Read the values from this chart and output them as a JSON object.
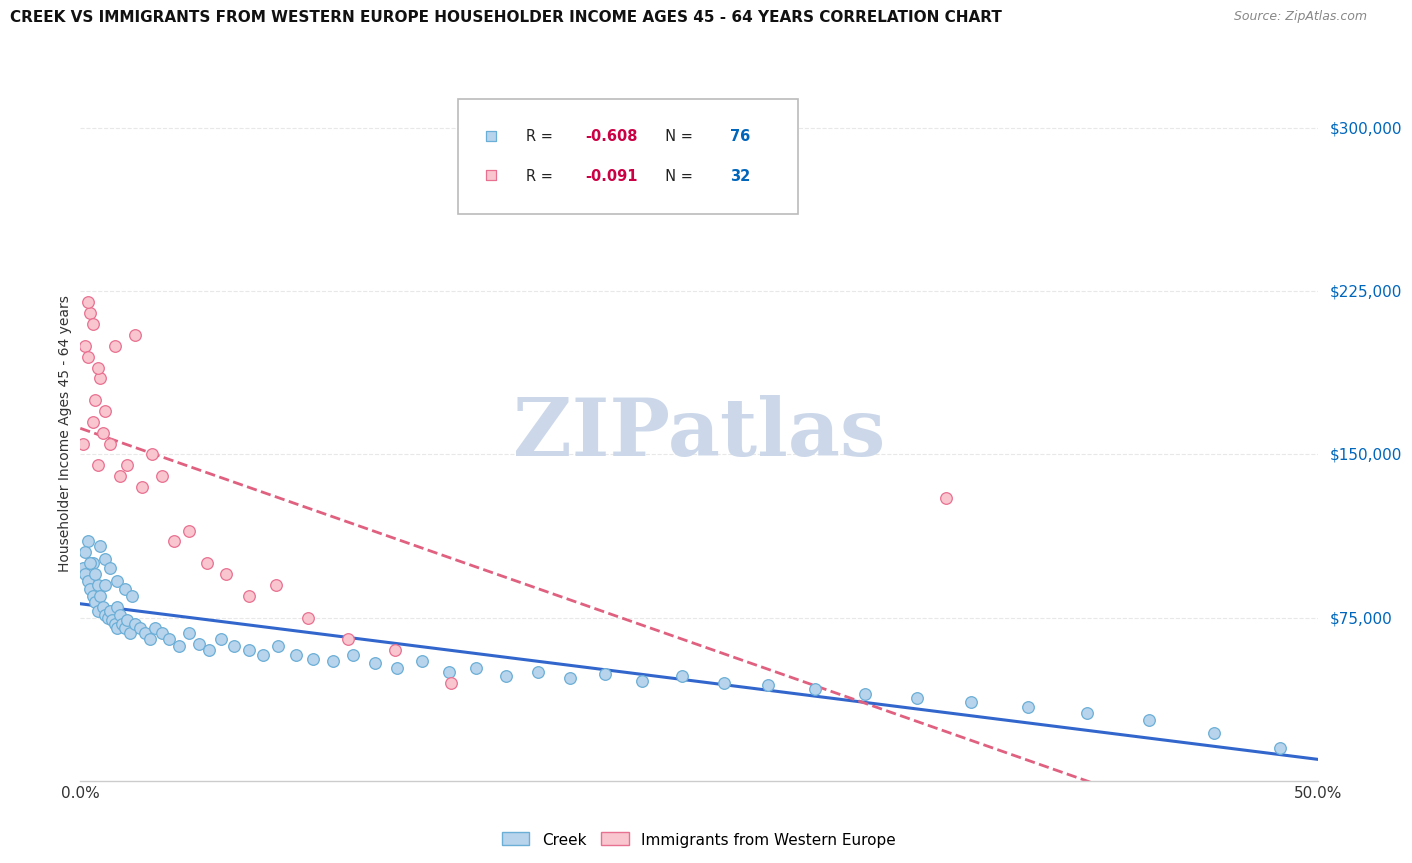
{
  "title": "CREEK VS IMMIGRANTS FROM WESTERN EUROPE HOUSEHOLDER INCOME AGES 45 - 64 YEARS CORRELATION CHART",
  "source": "Source: ZipAtlas.com",
  "ylabel": "Householder Income Ages 45 - 64 years",
  "ytick_labels": [
    "$75,000",
    "$150,000",
    "$225,000",
    "$300,000"
  ],
  "ytick_values": [
    75000,
    150000,
    225000,
    300000
  ],
  "ylim": [
    0,
    320000
  ],
  "xlim": [
    0.0,
    0.5
  ],
  "creek_R": -0.608,
  "creek_N": 76,
  "immigrants_R": -0.091,
  "immigrants_N": 32,
  "creek_color": "#b8d4ed",
  "creek_edge_color": "#6baed6",
  "immigrants_color": "#f9c6d0",
  "immigrants_edge_color": "#e87090",
  "trendline_creek_color": "#3366cc",
  "trendline_immigrants_color": "#e06080",
  "legend_R_color": "#cc0044",
  "legend_N_color": "#0066bb",
  "watermark_color": "#ccd8ea",
  "background_color": "#ffffff",
  "grid_color": "#e8e8e8",
  "creek_x": [
    0.001,
    0.002,
    0.003,
    0.003,
    0.004,
    0.005,
    0.005,
    0.006,
    0.007,
    0.007,
    0.008,
    0.009,
    0.01,
    0.01,
    0.011,
    0.012,
    0.013,
    0.014,
    0.015,
    0.015,
    0.016,
    0.017,
    0.018,
    0.019,
    0.02,
    0.022,
    0.024,
    0.026,
    0.028,
    0.03,
    0.033,
    0.036,
    0.04,
    0.044,
    0.048,
    0.052,
    0.057,
    0.062,
    0.068,
    0.074,
    0.08,
    0.087,
    0.094,
    0.102,
    0.11,
    0.119,
    0.128,
    0.138,
    0.149,
    0.16,
    0.172,
    0.185,
    0.198,
    0.212,
    0.227,
    0.243,
    0.26,
    0.278,
    0.297,
    0.317,
    0.338,
    0.36,
    0.383,
    0.407,
    0.432,
    0.458,
    0.485,
    0.002,
    0.004,
    0.006,
    0.008,
    0.01,
    0.012,
    0.015,
    0.018,
    0.021
  ],
  "creek_y": [
    98000,
    95000,
    110000,
    92000,
    88000,
    100000,
    85000,
    82000,
    90000,
    78000,
    85000,
    80000,
    76000,
    90000,
    75000,
    78000,
    74000,
    72000,
    80000,
    70000,
    76000,
    72000,
    70000,
    74000,
    68000,
    72000,
    70000,
    68000,
    65000,
    70000,
    68000,
    65000,
    62000,
    68000,
    63000,
    60000,
    65000,
    62000,
    60000,
    58000,
    62000,
    58000,
    56000,
    55000,
    58000,
    54000,
    52000,
    55000,
    50000,
    52000,
    48000,
    50000,
    47000,
    49000,
    46000,
    48000,
    45000,
    44000,
    42000,
    40000,
    38000,
    36000,
    34000,
    31000,
    28000,
    22000,
    15000,
    105000,
    100000,
    95000,
    108000,
    102000,
    98000,
    92000,
    88000,
    85000
  ],
  "immigrants_x": [
    0.001,
    0.002,
    0.003,
    0.004,
    0.005,
    0.006,
    0.007,
    0.008,
    0.009,
    0.01,
    0.012,
    0.014,
    0.016,
    0.019,
    0.022,
    0.025,
    0.029,
    0.033,
    0.038,
    0.044,
    0.051,
    0.059,
    0.068,
    0.079,
    0.092,
    0.108,
    0.127,
    0.15,
    0.003,
    0.005,
    0.007,
    0.35
  ],
  "immigrants_y": [
    155000,
    200000,
    195000,
    215000,
    165000,
    175000,
    145000,
    185000,
    160000,
    170000,
    155000,
    200000,
    140000,
    145000,
    205000,
    135000,
    150000,
    140000,
    110000,
    115000,
    100000,
    95000,
    85000,
    90000,
    75000,
    65000,
    60000,
    45000,
    220000,
    210000,
    190000,
    130000
  ]
}
